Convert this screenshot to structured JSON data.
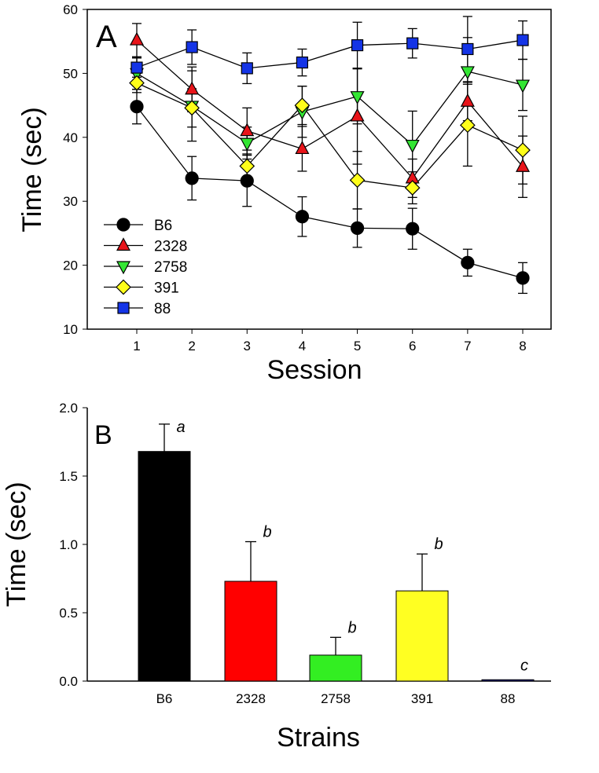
{
  "chart_data": [
    {
      "type": "line",
      "panel_label": "A",
      "xlabel": "Session",
      "ylabel": "Time (sec)",
      "ylim": [
        10,
        60
      ],
      "yticks": [
        10,
        20,
        30,
        40,
        50,
        60
      ],
      "x": [
        1,
        2,
        3,
        4,
        5,
        6,
        7,
        8
      ],
      "legend_position": "bottom-left",
      "series": [
        {
          "name": "B6",
          "marker": "circle",
          "color": "#000000",
          "values": [
            44.8,
            33.6,
            33.2,
            27.6,
            25.8,
            25.7,
            20.4,
            18.0
          ],
          "errors": [
            2.7,
            3.4,
            4.0,
            3.1,
            3.0,
            3.2,
            2.1,
            2.4
          ]
        },
        {
          "name": "2328",
          "marker": "triangle-up",
          "color": "#e8141a",
          "values": [
            55.2,
            47.5,
            41.0,
            38.2,
            43.3,
            33.6,
            45.6,
            35.4
          ],
          "errors": [
            2.6,
            3.5,
            3.6,
            3.5,
            7.5,
            3.0,
            3.0,
            4.8
          ]
        },
        {
          "name": "2758",
          "marker": "triangle-down",
          "color": "#33e633",
          "values": [
            50.0,
            44.9,
            39.1,
            44.0,
            46.4,
            38.8,
            50.3,
            48.2
          ],
          "errors": [
            2.5,
            5.5,
            2.5,
            4.0,
            4.3,
            5.3,
            5.3,
            4.0
          ]
        },
        {
          "name": "391",
          "marker": "diamond",
          "color": "#ffff1a",
          "values": [
            48.5,
            44.6,
            35.5,
            45.0,
            33.3,
            32.1,
            41.9,
            38.0
          ],
          "errors": [
            1.5,
            3.0,
            2.5,
            3.0,
            4.5,
            2.5,
            6.4,
            5.3
          ]
        },
        {
          "name": "88",
          "marker": "square",
          "color": "#1434e6",
          "values": [
            50.9,
            54.1,
            50.8,
            51.7,
            54.4,
            54.7,
            53.8,
            55.2
          ],
          "errors": [
            1.5,
            2.7,
            2.4,
            2.1,
            3.6,
            2.3,
            5.1,
            3.0
          ]
        }
      ]
    },
    {
      "type": "bar",
      "panel_label": "B",
      "xlabel": "Strains",
      "ylabel": "Time (sec)",
      "ylim": [
        0,
        2.0
      ],
      "yticks": [
        "0.0",
        "0.5",
        "1.0",
        "1.5",
        "2.0"
      ],
      "categories": [
        "B6",
        "2328",
        "2758",
        "391",
        "88"
      ],
      "values": [
        1.68,
        0.73,
        0.19,
        0.66,
        0.01
      ],
      "errors": [
        0.2,
        0.29,
        0.13,
        0.27,
        0
      ],
      "colors": [
        "#000000",
        "#ff0000",
        "#33ee22",
        "#ffff22",
        "#1a1a8c"
      ],
      "annotations": [
        "a",
        "b",
        "b",
        "b",
        "c"
      ]
    }
  ]
}
